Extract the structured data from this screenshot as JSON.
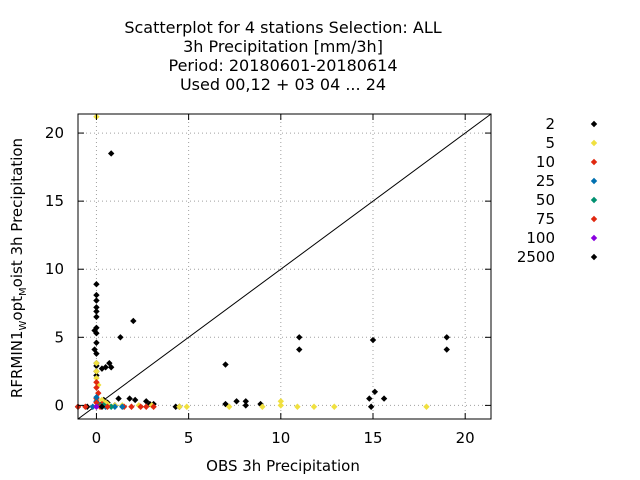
{
  "chart_data": {
    "type": "scatter",
    "title_lines": [
      "Scatterplot for    4 stations Selection: ALL",
      "3h Precipitation [mm/3h]",
      "Period: 20180601-20180614",
      "Used  00,12  + 03 04 ... 24"
    ],
    "xlabel": "OBS 3h Precipitation",
    "ylabel_parts": {
      "main": "RFRMIN1",
      "sub1": "W",
      "mid": "opt",
      "sub2": "M",
      "tail": "oist 3h Precipitation"
    },
    "xlim": [
      -1,
      21.4
    ],
    "ylim": [
      -1,
      21.4
    ],
    "xticks": [
      0,
      5,
      10,
      15,
      20
    ],
    "yticks": [
      0,
      5,
      10,
      15,
      20
    ],
    "grid": true,
    "diagonal": true,
    "legend_position": "right",
    "series": [
      {
        "name": "2",
        "color": "#000000",
        "points": [
          [
            0,
            8.9
          ],
          [
            0,
            8.1
          ],
          [
            0,
            7.7
          ],
          [
            0,
            7.2
          ],
          [
            0,
            6.9
          ],
          [
            0,
            6.5
          ],
          [
            0,
            5.7
          ],
          [
            0,
            5.3
          ],
          [
            -0.1,
            5.5
          ],
          [
            0,
            4.6
          ],
          [
            -0.1,
            4.1
          ],
          [
            0,
            3.8
          ],
          [
            0,
            3.1
          ],
          [
            0,
            2.9
          ],
          [
            0,
            2.5
          ],
          [
            0,
            2.2
          ],
          [
            0.7,
            3.1
          ],
          [
            0.8,
            2.8
          ],
          [
            0.5,
            2.8
          ],
          [
            0.3,
            2.7
          ],
          [
            1.3,
            5.0
          ],
          [
            2.0,
            6.2
          ],
          [
            0.8,
            18.5
          ],
          [
            0.4,
            0.4
          ],
          [
            0.6,
            0.2
          ],
          [
            1.2,
            0.5
          ],
          [
            1.8,
            0.5
          ],
          [
            2.1,
            0.4
          ],
          [
            2.7,
            0.3
          ],
          [
            2.9,
            0.1
          ],
          [
            3.1,
            0.1
          ],
          [
            4.3,
            -0.1
          ],
          [
            4.5,
            -0.1
          ],
          [
            7.0,
            3.0
          ],
          [
            7.0,
            0.1
          ],
          [
            7.6,
            0.3
          ],
          [
            8.1,
            0.3
          ],
          [
            8.1,
            0.0
          ],
          [
            8.9,
            0.1
          ],
          [
            11.0,
            5.0
          ],
          [
            11.0,
            4.1
          ],
          [
            14.8,
            0.5
          ],
          [
            14.9,
            -0.1
          ],
          [
            15.0,
            4.8
          ],
          [
            15.1,
            1.0
          ],
          [
            15.6,
            0.5
          ],
          [
            19.0,
            5.0
          ],
          [
            19.0,
            4.1
          ],
          [
            -1.0,
            -0.1
          ],
          [
            -0.5,
            -0.1
          ],
          [
            0.2,
            0.0
          ],
          [
            1.0,
            0.0
          ]
        ]
      },
      {
        "name": "5",
        "color": "#f0e040",
        "points": [
          [
            0,
            21.2
          ],
          [
            0,
            3.1
          ],
          [
            0,
            2.5
          ],
          [
            0,
            2.0
          ],
          [
            0.1,
            1.5
          ],
          [
            0.3,
            0.4
          ],
          [
            0.6,
            0.1
          ],
          [
            1.0,
            0.0
          ],
          [
            1.4,
            0.0
          ],
          [
            3.0,
            0.0
          ],
          [
            4.5,
            -0.1
          ],
          [
            4.9,
            -0.1
          ],
          [
            7.2,
            -0.1
          ],
          [
            9.0,
            -0.1
          ],
          [
            10.0,
            0.3
          ],
          [
            10.0,
            0.0
          ],
          [
            10.9,
            -0.1
          ],
          [
            11.8,
            -0.1
          ],
          [
            12.9,
            -0.1
          ],
          [
            17.9,
            -0.1
          ],
          [
            2.3,
            0.0
          ],
          [
            0.5,
            0.2
          ]
        ]
      },
      {
        "name": "10",
        "color": "#e02810",
        "points": [
          [
            -1.0,
            -0.1
          ],
          [
            -0.6,
            -0.1
          ],
          [
            0,
            1.7
          ],
          [
            0,
            1.3
          ],
          [
            0.1,
            0.9
          ],
          [
            0,
            0.5
          ],
          [
            0.3,
            0.1
          ],
          [
            2.4,
            -0.1
          ],
          [
            2.7,
            -0.1
          ],
          [
            3.1,
            -0.1
          ],
          [
            1.5,
            -0.1
          ]
        ]
      },
      {
        "name": "25",
        "color": "#0070b0",
        "points": [
          [
            0,
            0.6
          ],
          [
            0,
            0.3
          ],
          [
            0.2,
            0.0
          ],
          [
            0.5,
            -0.1
          ],
          [
            1.0,
            -0.1
          ],
          [
            1.4,
            -0.1
          ],
          [
            -0.2,
            -0.1
          ]
        ]
      },
      {
        "name": "50",
        "color": "#009070",
        "points": [
          [
            0.1,
            0.1
          ],
          [
            0.4,
            0.0
          ],
          [
            0.8,
            -0.1
          ]
        ]
      },
      {
        "name": "75",
        "color": "#e02810",
        "points": [
          [
            0,
            0.2
          ],
          [
            0.2,
            -0.1
          ],
          [
            0.6,
            -0.1
          ],
          [
            1.9,
            -0.1
          ]
        ]
      },
      {
        "name": "100",
        "color": "#8a00e0",
        "points": [
          [
            0.0,
            -0.1
          ]
        ]
      },
      {
        "name": "2500",
        "color": "#000000",
        "points": [
          [
            0.3,
            -0.1
          ]
        ]
      }
    ]
  }
}
